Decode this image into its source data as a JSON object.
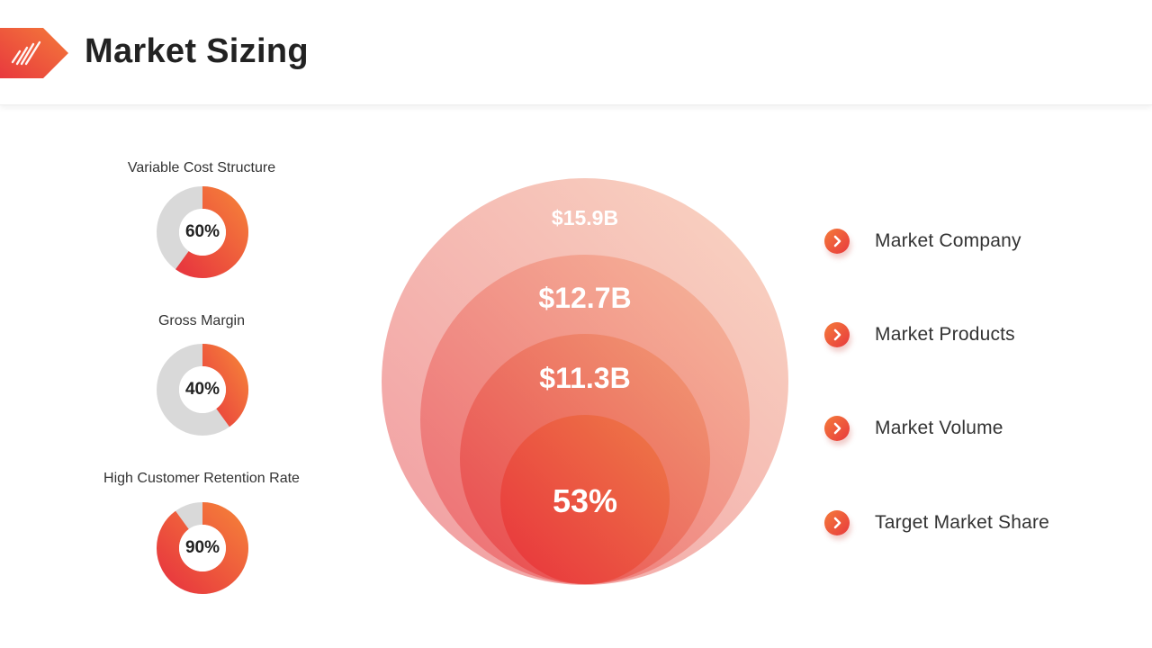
{
  "header": {
    "title": "Market Sizing"
  },
  "colors": {
    "accent_orange": "#F47B3A",
    "accent_red": "#E8393E",
    "track_grey": "#D9D9D9"
  },
  "gauges": [
    {
      "label": "Variable  Cost Structure",
      "value_text": "60%",
      "value": 60
    },
    {
      "label": "Gross Margin",
      "value_text": "40%",
      "value": 40
    },
    {
      "label": "High Customer Retention Rate",
      "value_text": "90%",
      "value": 90
    }
  ],
  "bubbles": [
    {
      "value": "$15.9B"
    },
    {
      "value": "$12.7B"
    },
    {
      "value": "$11.3B"
    },
    {
      "value": "53%"
    }
  ],
  "legend": [
    {
      "label": "Market Company",
      "icon": "chevron-right-icon"
    },
    {
      "label": "Market Products",
      "icon": "chevron-right-icon"
    },
    {
      "label": "Market Volume",
      "icon": "chevron-right-icon"
    },
    {
      "label": "Target Market Share",
      "icon": "chevron-right-icon"
    }
  ]
}
